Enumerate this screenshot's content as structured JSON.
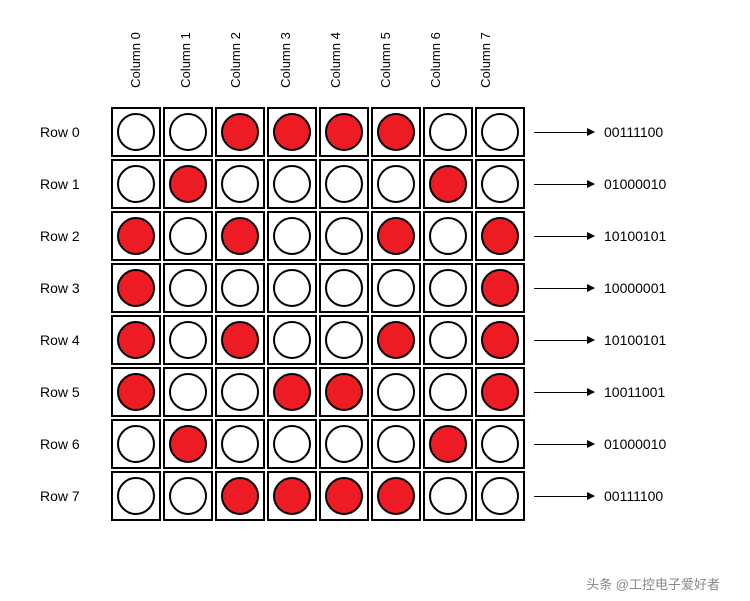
{
  "grid": {
    "column_labels": [
      "Column 0",
      "Column 1",
      "Column 2",
      "Column 3",
      "Column 4",
      "Column 5",
      "Column 6",
      "Column 7"
    ],
    "row_labels": [
      "Row 0",
      "Row 1",
      "Row 2",
      "Row 3",
      "Row 4",
      "Row 5",
      "Row 6",
      "Row 7"
    ],
    "matrix": [
      [
        0,
        0,
        1,
        1,
        1,
        1,
        0,
        0
      ],
      [
        0,
        1,
        0,
        0,
        0,
        0,
        1,
        0
      ],
      [
        1,
        0,
        1,
        0,
        0,
        1,
        0,
        1
      ],
      [
        1,
        0,
        0,
        0,
        0,
        0,
        0,
        1
      ],
      [
        1,
        0,
        1,
        0,
        0,
        1,
        0,
        1
      ],
      [
        1,
        0,
        0,
        1,
        1,
        0,
        0,
        1
      ],
      [
        0,
        1,
        0,
        0,
        0,
        0,
        1,
        0
      ],
      [
        0,
        0,
        1,
        1,
        1,
        1,
        0,
        0
      ]
    ],
    "binary": [
      "00111100",
      "01000010",
      "10100101",
      "10000001",
      "10100101",
      "10011001",
      "01000010",
      "00111100"
    ],
    "colors": {
      "on": "#ed1c24",
      "off": "#ffffff",
      "border": "#000000",
      "background": "#ffffff"
    }
  },
  "watermark": "头条 @工控电子爱好者"
}
